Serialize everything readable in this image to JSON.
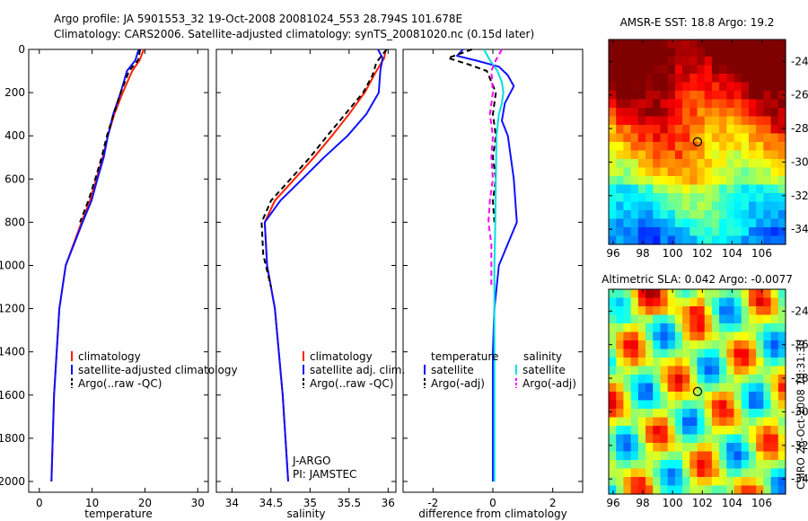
{
  "header": {
    "title_line1": "Argo profile: JA 5901553_32 19-Oct-2008 20081024_553 28.794S 101.678E",
    "title_line2": "Climatology: CARS2006. Satellite-adjusted climatology: synTS_20081020.nc (0.15d later)"
  },
  "side_label": "CSIRO 26-Oct-2008 10:31:30",
  "colors": {
    "climatology": "#ff2000",
    "satellite": "#1010ff",
    "argo": "#000000",
    "salinity_satellite": "#00e0e0",
    "salinity_argo": "#ff00ff",
    "marker": "#000000"
  },
  "chart_data": [
    {
      "id": "temperature-panel",
      "type": "line",
      "xlabel": "temperature",
      "ylabel": "",
      "xlim": [
        -2,
        32
      ],
      "ylim": [
        0,
        2050
      ],
      "y_reversed": true,
      "xticks": [
        0,
        10,
        20,
        30
      ],
      "yticks": [
        0,
        200,
        400,
        600,
        800,
        1000,
        1200,
        1400,
        1600,
        1800,
        2000
      ],
      "legend": [
        "climatology",
        "satellite-adjusted climatology",
        "Argo(..raw -QC)"
      ],
      "legend_colors": [
        "climatology",
        "satellite",
        "argo"
      ],
      "legend_position": "lower-right",
      "series": [
        {
          "name": "climatology",
          "color_key": "climatology",
          "style": "solid",
          "x": [
            19.8,
            19.0,
            17.6,
            15.8,
            14.2,
            13.0,
            12.0,
            10.8,
            9.6,
            8.0,
            5.0,
            3.8,
            2.8,
            2.3
          ],
          "y": [
            0,
            50,
            100,
            200,
            300,
            400,
            500,
            600,
            700,
            800,
            1000,
            1200,
            1600,
            2000
          ]
        },
        {
          "name": "satellite-adjusted climatology",
          "color_key": "satellite",
          "style": "solid",
          "x": [
            18.8,
            18.2,
            16.6,
            15.4,
            14.0,
            13.0,
            12.2,
            11.0,
            9.9,
            8.2,
            5.0,
            3.8,
            2.8,
            2.3
          ],
          "y": [
            0,
            50,
            100,
            200,
            300,
            400,
            500,
            600,
            700,
            800,
            1000,
            1200,
            1600,
            2000
          ]
        },
        {
          "name": "Argo(..raw -QC)",
          "color_key": "argo",
          "style": "dashed",
          "x": [
            19.1,
            18.7,
            17.0,
            15.4,
            14.1,
            12.8,
            11.8,
            10.6,
            9.3,
            7.7
          ],
          "y": [
            0,
            50,
            100,
            200,
            300,
            400,
            500,
            600,
            700,
            800
          ]
        }
      ]
    },
    {
      "id": "salinity-panel",
      "type": "line",
      "xlabel": "salinity",
      "ylabel": "",
      "xlim": [
        33.8,
        36.1
      ],
      "ylim": [
        0,
        2050
      ],
      "y_reversed": true,
      "xticks": [
        34,
        34.5,
        35,
        35.5,
        36
      ],
      "yticks": [
        0,
        200,
        400,
        600,
        800,
        1000,
        1200,
        1400,
        1600,
        1800,
        2000
      ],
      "legend": [
        "climatology",
        "satellite adj. clim.",
        "Argo(..raw -QC)"
      ],
      "legend_colors": [
        "climatology",
        "satellite",
        "argo"
      ],
      "legend_position": "lower-right",
      "annotations": [
        "J-ARGO",
        "PI: JAMSTEC"
      ],
      "series": [
        {
          "name": "climatology",
          "color_key": "climatology",
          "style": "solid",
          "x": [
            35.97,
            35.95,
            35.85,
            35.7,
            35.5,
            35.28,
            35.05,
            34.8,
            34.55,
            34.42,
            34.45,
            34.55,
            34.65,
            34.72
          ],
          "y": [
            0,
            40,
            100,
            200,
            300,
            400,
            500,
            600,
            700,
            800,
            1000,
            1200,
            1600,
            2000
          ]
        },
        {
          "name": "satellite adj. clim.",
          "color_key": "satellite",
          "style": "solid",
          "x": [
            35.87,
            35.93,
            35.9,
            35.88,
            35.72,
            35.48,
            35.18,
            34.9,
            34.62,
            34.42,
            34.45,
            34.55,
            34.65,
            34.72
          ],
          "y": [
            0,
            40,
            100,
            200,
            300,
            400,
            500,
            600,
            700,
            800,
            1000,
            1200,
            1600,
            2000
          ]
        },
        {
          "name": "Argo(..raw -QC)",
          "color_key": "argo",
          "style": "dashed",
          "x": [
            35.98,
            35.85,
            35.8,
            35.68,
            35.45,
            35.22,
            35.0,
            34.75,
            34.5,
            34.38,
            34.4,
            34.5
          ],
          "y": [
            0,
            60,
            120,
            200,
            300,
            400,
            500,
            600,
            700,
            800,
            950,
            1100
          ]
        }
      ]
    },
    {
      "id": "difference-panel",
      "type": "line",
      "xlabel": "difference from climatology",
      "ylabel": "",
      "xlim": [
        -3,
        3
      ],
      "ylim": [
        0,
        2050
      ],
      "y_reversed": true,
      "xticks": [
        -2,
        0,
        2
      ],
      "yticks": [
        0,
        200,
        400,
        600,
        800,
        1000,
        1200,
        1400,
        1600,
        1800,
        2000
      ],
      "legend_group_titles": [
        "temperature",
        "salinity"
      ],
      "legend": [
        "satellite",
        "Argo(-adj)",
        "satellite",
        "Argo(-adj)"
      ],
      "legend_colors": [
        "satellite",
        "argo",
        "salinity_satellite",
        "salinity_argo"
      ],
      "legend_position": "lower-center",
      "series": [
        {
          "name": "temperature satellite",
          "color_key": "satellite",
          "style": "solid",
          "x": [
            -1.0,
            -1.2,
            -0.6,
            0.2,
            0.5,
            0.7,
            0.4,
            0.3,
            0.5,
            0.7,
            0.8,
            0.5,
            0.2,
            0.05,
            0.0,
            0.0,
            0.0
          ],
          "y": [
            0,
            30,
            50,
            80,
            120,
            170,
            250,
            330,
            400,
            600,
            800,
            900,
            1000,
            1200,
            1400,
            1600,
            2000
          ]
        },
        {
          "name": "temperature Argo(-adj)",
          "color_key": "argo",
          "style": "dashed",
          "x": [
            -0.7,
            -1.5,
            -0.8,
            -0.2,
            0.1,
            0.0,
            0.1,
            0.0,
            0.1,
            0.0,
            0.05
          ],
          "y": [
            0,
            40,
            70,
            100,
            200,
            300,
            400,
            500,
            600,
            700,
            800
          ]
        },
        {
          "name": "salinity satellite",
          "color_key": "salinity_satellite",
          "style": "solid",
          "x": [
            -0.3,
            -0.1,
            0.15,
            0.3,
            0.35,
            0.3,
            0.2,
            0.12,
            0.1,
            0.08,
            0.05,
            0.05,
            0.05
          ],
          "y": [
            0,
            50,
            100,
            150,
            200,
            250,
            300,
            400,
            600,
            800,
            1000,
            1500,
            2000
          ]
        },
        {
          "name": "salinity Argo(-adj)",
          "color_key": "salinity_argo",
          "style": "dashed",
          "x": [
            0.3,
            0.1,
            -0.05,
            0.0,
            -0.1,
            0.0,
            -0.05,
            0.0,
            -0.1,
            -0.15,
            -0.05,
            -0.05
          ],
          "y": [
            0,
            50,
            100,
            200,
            300,
            400,
            500,
            600,
            700,
            800,
            900,
            1100
          ]
        }
      ]
    },
    {
      "id": "sst-map",
      "type": "heatmap",
      "title": "AMSR-E SST: 18.8 Argo: 19.2",
      "xlim": [
        95.7,
        107.6
      ],
      "ylim": [
        -34.9,
        -22.7
      ],
      "xticks": [
        96,
        98,
        100,
        102,
        104,
        106
      ],
      "yticks": [
        -24,
        -26,
        -28,
        -30,
        -32,
        -34
      ],
      "marker": {
        "lon": 101.678,
        "lat": -28.794
      },
      "colormap": "jet",
      "value_range": [
        13,
        22
      ]
    },
    {
      "id": "sla-map",
      "type": "heatmap",
      "title": "Altimetric SLA: 0.042 Argo: -0.0077",
      "xlim": [
        95.7,
        107.6
      ],
      "ylim": [
        -34.9,
        -22.7
      ],
      "xticks": [
        96,
        98,
        100,
        102,
        104,
        106
      ],
      "yticks": [
        -24,
        -26,
        -28,
        -30,
        -32,
        -34
      ],
      "marker": {
        "lon": 101.678,
        "lat": -28.794
      },
      "colormap": "jet",
      "value_range": [
        -0.3,
        0.3
      ]
    }
  ]
}
